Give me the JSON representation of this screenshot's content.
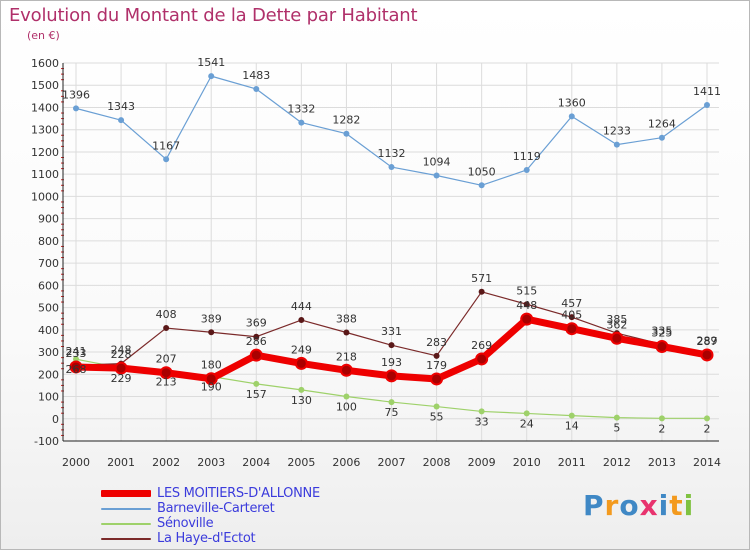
{
  "title": "Evolution du Montant de la Dette par Habitant",
  "unit": "(en €)",
  "logo": {
    "text": "Proxiti",
    "letter_colors": [
      "#3f88c5",
      "#f39a1e",
      "#3f88c5",
      "#e8336e",
      "#3f88c5",
      "#f39a1e",
      "#7fc241"
    ]
  },
  "chart_data": {
    "type": "line",
    "title": "Evolution du Montant de la Dette par Habitant",
    "ylabel": "(en €)",
    "xlabel": "",
    "ylim": [
      -100,
      1600
    ],
    "yticks": [
      -100,
      0,
      100,
      200,
      300,
      400,
      500,
      600,
      700,
      800,
      900,
      1000,
      1100,
      1200,
      1300,
      1400,
      1500,
      1600
    ],
    "grid": true,
    "legend_position": "bottom-left",
    "x": [
      "2000",
      "2001",
      "2002",
      "2003",
      "2004",
      "2005",
      "2006",
      "2007",
      "2008",
      "2009",
      "2010",
      "2011",
      "2012",
      "2013",
      "2014"
    ],
    "series": [
      {
        "name": "LES MOITIERS-D'ALLONNE",
        "color": "#ee0000",
        "width": 7,
        "values": [
          233,
          228,
          207,
          180,
          286,
          249,
          218,
          193,
          179,
          269,
          448,
          405,
          362,
          325,
          287
        ]
      },
      {
        "name": "Barneville-Carteret",
        "color": "#6a9fd4",
        "width": 1.2,
        "values": [
          1396,
          1343,
          1167,
          1541,
          1483,
          1332,
          1282,
          1132,
          1094,
          1050,
          1119,
          1360,
          1233,
          1264,
          1411
        ]
      },
      {
        "name": "Sénoville",
        "color": "#9ed16a",
        "width": 1.2,
        "values": [
          268,
          229,
          213,
          190,
          157,
          130,
          100,
          75,
          55,
          33,
          24,
          14,
          5,
          2,
          2
        ]
      },
      {
        "name": "La Haye-d'Ectot",
        "color": "#7b2a2a",
        "width": 1.2,
        "values": [
          241,
          248,
          408,
          389,
          369,
          444,
          388,
          331,
          283,
          571,
          515,
          457,
          385,
          335,
          289
        ]
      }
    ]
  }
}
